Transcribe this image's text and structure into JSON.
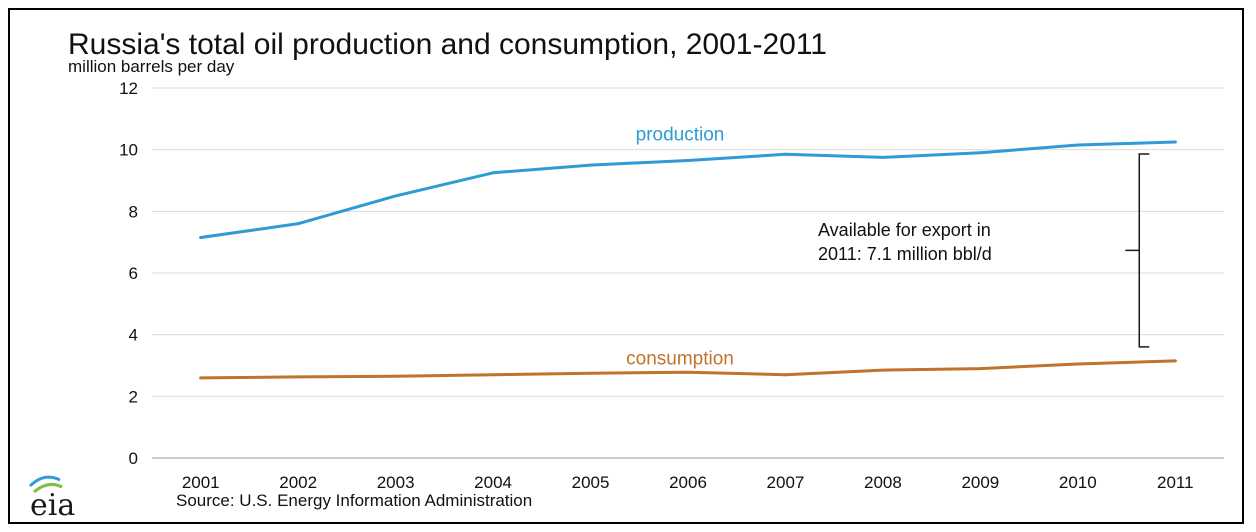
{
  "chart_data": {
    "type": "line",
    "title": "Russia's total oil production and consumption, 2001-2011",
    "ylabel": "million barrels per day",
    "xlabel": "",
    "x": [
      "2001",
      "2002",
      "2003",
      "2004",
      "2005",
      "2006",
      "2007",
      "2008",
      "2009",
      "2010",
      "2011"
    ],
    "yticks": [
      "0",
      "2",
      "4",
      "6",
      "8",
      "10",
      "12"
    ],
    "ylim": [
      0,
      12
    ],
    "grid": true,
    "series": [
      {
        "name": "production",
        "color": "#2e9bd6",
        "values": [
          7.15,
          7.6,
          8.5,
          9.25,
          9.5,
          9.65,
          9.85,
          9.75,
          9.9,
          10.15,
          10.25
        ]
      },
      {
        "name": "consumption",
        "color": "#c0732a",
        "values": [
          2.6,
          2.63,
          2.65,
          2.7,
          2.75,
          2.78,
          2.7,
          2.85,
          2.9,
          3.05,
          3.15
        ]
      }
    ],
    "annotation": {
      "line1": "Available for export in",
      "line2": "2011: 7.1 million bbl/d"
    },
    "source": "Source: U.S. Energy Information Administration",
    "logo_text": "eia"
  }
}
